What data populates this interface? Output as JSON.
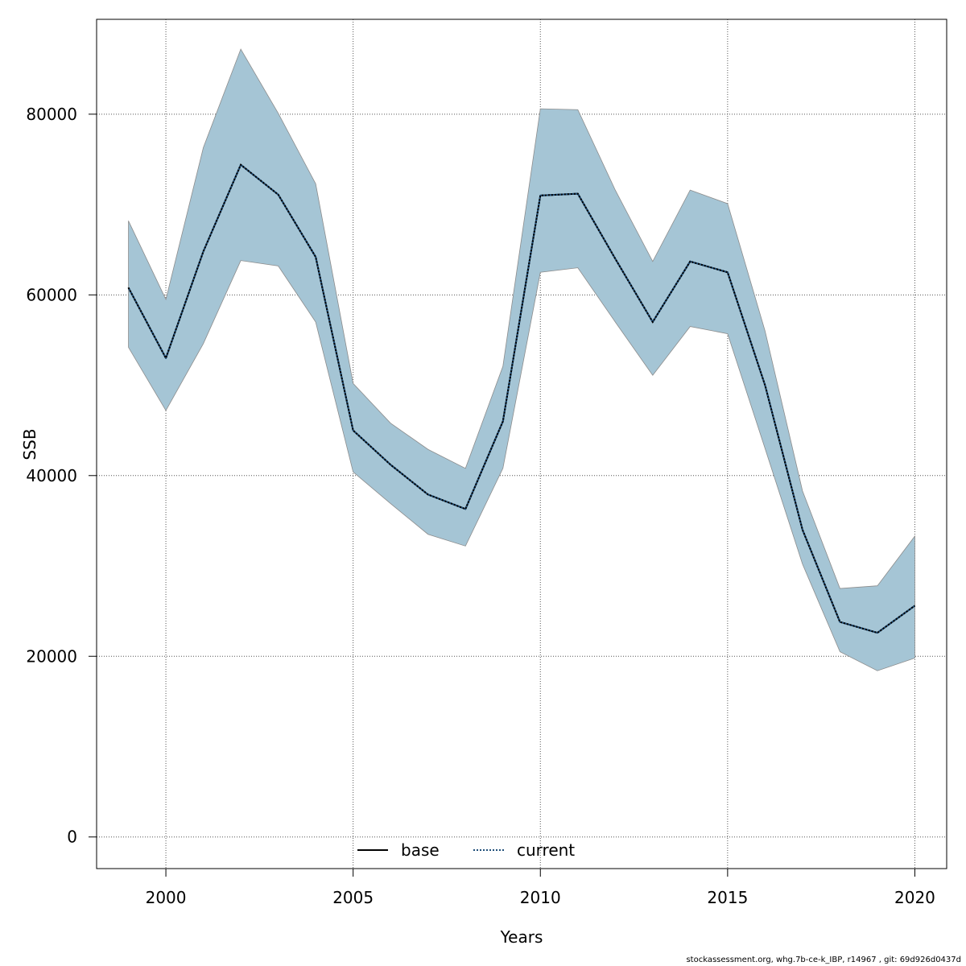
{
  "chart_data": {
    "type": "line",
    "xlabel": "Years",
    "ylabel": "SSB",
    "xlim": [
      1998.15,
      2020.85
    ],
    "ylim": [
      -3500,
      90500
    ],
    "x_ticks": [
      2000,
      2005,
      2010,
      2015,
      2020
    ],
    "y_ticks": [
      0,
      20000,
      40000,
      60000,
      80000
    ],
    "grid": true,
    "legend_position": "bottom-center",
    "colors": {
      "band_fill": "#a5c5d5",
      "band_edge": "#8c8c8c",
      "base_line": "#000000",
      "current_line": "#1f4e79",
      "grid": "#555555"
    },
    "x": [
      1999,
      2000,
      2001,
      2002,
      2003,
      2004,
      2005,
      2006,
      2007,
      2008,
      2009,
      2010,
      2011,
      2012,
      2013,
      2014,
      2015,
      2016,
      2017,
      2018,
      2019,
      2020
    ],
    "series": [
      {
        "name": "base",
        "style": "solid",
        "values": [
          60800,
          53000,
          64800,
          74400,
          71100,
          64200,
          45000,
          41200,
          37900,
          36300,
          46000,
          71000,
          71200,
          64000,
          57000,
          63700,
          62500,
          50000,
          34000,
          23800,
          22600,
          25600
        ]
      },
      {
        "name": "current",
        "style": "dotted",
        "values": [
          60800,
          53000,
          64800,
          74400,
          71100,
          64200,
          45000,
          41200,
          37900,
          36300,
          46000,
          71000,
          71200,
          64000,
          57000,
          63700,
          62500,
          50000,
          34000,
          23800,
          22600,
          25600
        ]
      }
    ],
    "band": {
      "upper": [
        68200,
        59500,
        76300,
        87200,
        80100,
        72300,
        50200,
        45800,
        42900,
        40800,
        52100,
        80600,
        80500,
        71600,
        63700,
        71600,
        70100,
        56000,
        38300,
        27500,
        27800,
        33300
      ],
      "lower": [
        54200,
        47200,
        54600,
        63800,
        63200,
        57000,
        40400,
        36900,
        33500,
        32200,
        40800,
        62500,
        63000,
        57000,
        51100,
        56500,
        55700,
        43000,
        30200,
        20500,
        18400,
        19800
      ]
    }
  },
  "footer": {
    "note": "stockassessment.org, whg.7b-ce-k_IBP, r14967 , git: 69d926d0437d"
  }
}
